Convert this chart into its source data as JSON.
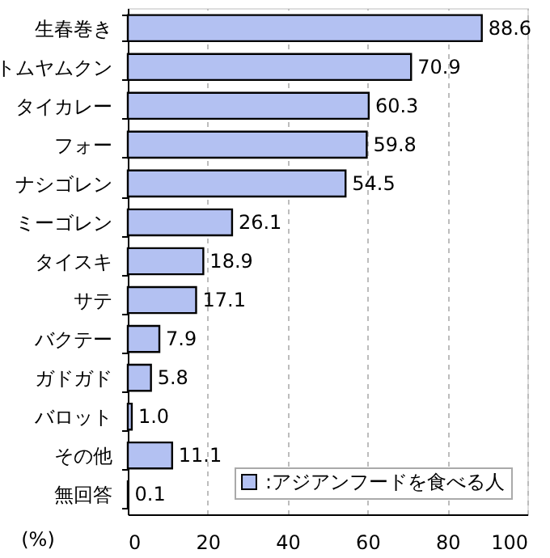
{
  "chart_data": {
    "type": "bar",
    "orientation": "horizontal",
    "categories": [
      "生春巻き",
      "トムヤムクン",
      "タイカレー",
      "フォー",
      "ナシゴレン",
      "ミーゴレン",
      "タイスキ",
      "サテ",
      "バクテー",
      "ガドガド",
      "バロット",
      "その他",
      "無回答"
    ],
    "series": [
      {
        "name": ":アジアンフードを食べる人",
        "color": "#b3c1f2",
        "values": [
          88.6,
          70.9,
          60.3,
          59.8,
          54.5,
          26.1,
          18.9,
          17.1,
          7.9,
          5.8,
          1.0,
          11.1,
          0.1
        ],
        "value_labels": [
          "88.6",
          "70.9",
          "60.3",
          "59.8",
          "54.5",
          "26.1",
          "18.9",
          "17.1",
          "7.9",
          "5.8",
          "1.0",
          "11.1",
          "0.1"
        ]
      }
    ],
    "xlabel": "(%)",
    "xlim": [
      0,
      100
    ],
    "xticks": [
      0,
      20,
      40,
      60,
      80,
      100
    ],
    "grid": "x",
    "legend": "bottom right"
  }
}
